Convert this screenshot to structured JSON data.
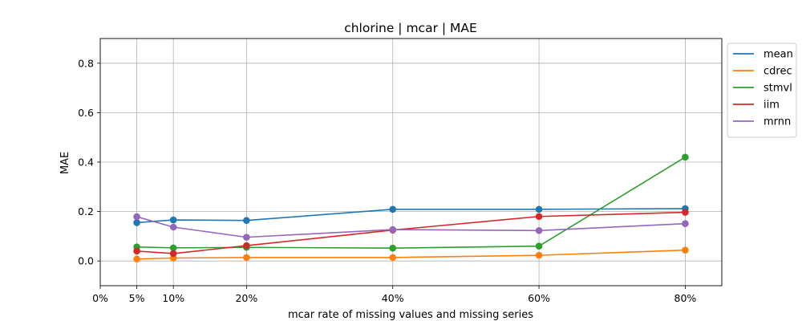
{
  "chart_data": {
    "type": "line",
    "title": "chlorine | mcar | MAE",
    "xlabel": "mcar rate of missing values and missing series",
    "ylabel": "MAE",
    "x": [
      5,
      10,
      20,
      40,
      60,
      80
    ],
    "xticks": [
      0,
      5,
      10,
      20,
      40,
      60,
      80
    ],
    "xtick_labels": [
      "0%",
      "5%",
      "10%",
      "20%",
      "40%",
      "60%",
      "80%"
    ],
    "xlim": [
      0,
      85
    ],
    "ylim": [
      -0.1,
      0.9
    ],
    "yticks": [
      0.0,
      0.2,
      0.4,
      0.6,
      0.8
    ],
    "ytick_labels": [
      "0.0",
      "0.2",
      "0.4",
      "0.6",
      "0.8"
    ],
    "grid": true,
    "legend_position": "outside-top-right",
    "series": [
      {
        "name": "mean",
        "color": "#1f77b4",
        "values": [
          0.155,
          0.166,
          0.164,
          0.209,
          0.209,
          0.212
        ]
      },
      {
        "name": "cdrec",
        "color": "#ff7f0e",
        "values": [
          0.008,
          0.012,
          0.014,
          0.014,
          0.023,
          0.044
        ]
      },
      {
        "name": "stmvl",
        "color": "#2ca02c",
        "values": [
          0.057,
          0.053,
          0.055,
          0.052,
          0.06,
          0.42
        ]
      },
      {
        "name": "iim",
        "color": "#d62728",
        "values": [
          0.04,
          0.03,
          0.062,
          0.125,
          0.18,
          0.197
        ]
      },
      {
        "name": "mrnn",
        "color": "#9467bd",
        "values": [
          0.179,
          0.137,
          0.096,
          0.127,
          0.123,
          0.151
        ]
      }
    ]
  }
}
